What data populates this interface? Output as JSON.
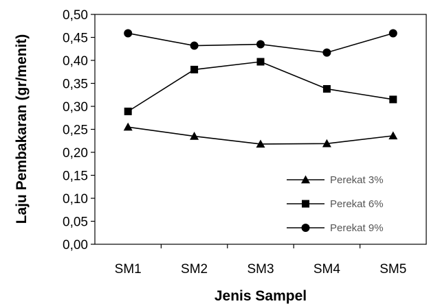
{
  "chart_data": {
    "type": "line",
    "categories": [
      "SM1",
      "SM2",
      "SM3",
      "SM4",
      "SM5"
    ],
    "series": [
      {
        "name": "Perekat 3%",
        "marker": "triangle",
        "values": [
          0.255,
          0.235,
          0.218,
          0.219,
          0.236
        ]
      },
      {
        "name": "Perekat 6%",
        "marker": "square",
        "values": [
          0.289,
          0.38,
          0.397,
          0.338,
          0.315
        ]
      },
      {
        "name": "Perekat 9%",
        "marker": "circle",
        "values": [
          0.459,
          0.432,
          0.435,
          0.417,
          0.459
        ]
      }
    ],
    "xlabel": "Jenis Sampel",
    "ylabel": "Laju Pembakaran (gr/menit)",
    "ylim": [
      0,
      0.5
    ],
    "yticks": [
      "0,00",
      "0,05",
      "0,10",
      "0,15",
      "0,20",
      "0,25",
      "0,30",
      "0,35",
      "0,40",
      "0,45",
      "0,50"
    ],
    "grid": false,
    "legend_position": "bottom-right",
    "line_color": "#000000"
  }
}
